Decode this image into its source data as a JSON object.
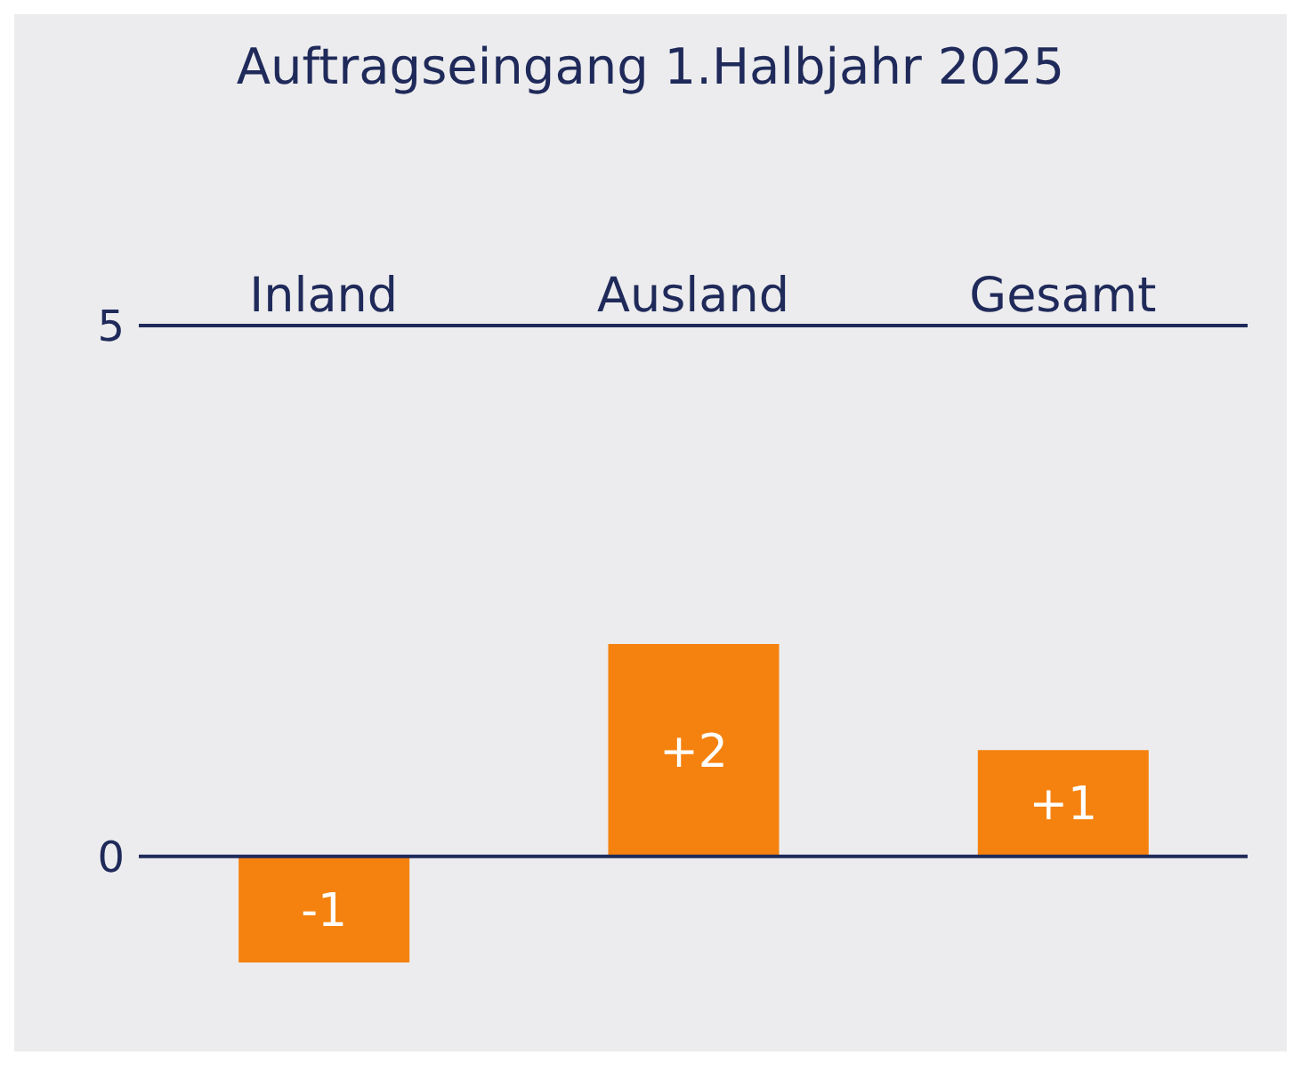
{
  "chart_data": {
    "type": "bar",
    "title": "Auftragseingang 1.Halbjahr 2025",
    "categories": [
      "Inland",
      "Ausland",
      "Gesamt"
    ],
    "values": [
      -1,
      2,
      1
    ],
    "value_labels": [
      "-1",
      "+2",
      "+1"
    ],
    "color": "#f5820f",
    "ylim": [
      -1,
      5
    ],
    "yticks": [
      0,
      5
    ],
    "ref_lines": [
      {
        "axis": "y",
        "value": 0,
        "label": null,
        "color": "#1f2a5a"
      }
    ]
  }
}
